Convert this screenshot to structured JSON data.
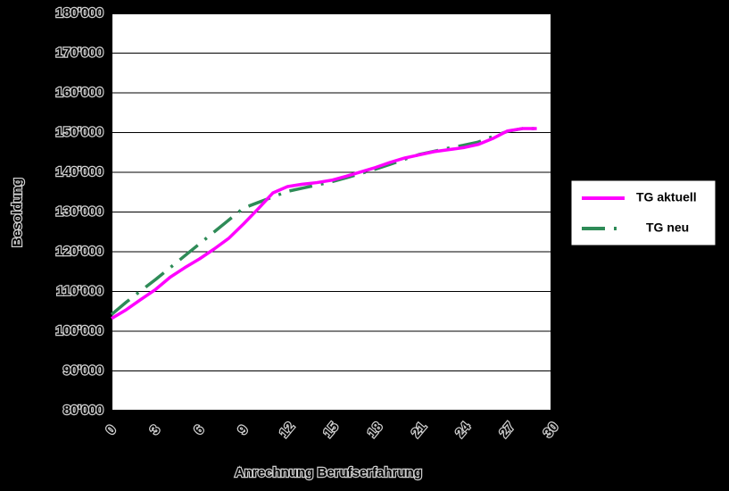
{
  "chart_data": {
    "type": "line",
    "title": "",
    "xlabel": "Anrechnung Berufserfahrung",
    "ylabel": "Besoldung",
    "xlim": [
      0,
      30
    ],
    "ylim": [
      80000,
      180000
    ],
    "x_ticks": [
      0,
      3,
      6,
      9,
      12,
      15,
      18,
      21,
      24,
      27,
      30
    ],
    "y_ticks": [
      80000,
      90000,
      100000,
      110000,
      120000,
      130000,
      140000,
      150000,
      160000,
      170000,
      180000
    ],
    "y_tick_labels": [
      "80'000",
      "90'000",
      "100'000",
      "110'000",
      "120'000",
      "130'000",
      "140'000",
      "150'000",
      "160'000",
      "170'000",
      "180'000"
    ],
    "grid": "horizontal",
    "legend": "right",
    "series": [
      {
        "name": "TG aktuell",
        "color": "#ff00ff",
        "style": "solid",
        "x": [
          0,
          1,
          2,
          3,
          4,
          5,
          6,
          7,
          8,
          9,
          10,
          11,
          12,
          13,
          14,
          15,
          16,
          17,
          18,
          19,
          20,
          21,
          22,
          23,
          24,
          25,
          26,
          27,
          28,
          29
        ],
        "y": [
          103200,
          105400,
          108000,
          110500,
          113600,
          116000,
          118200,
          120700,
          123400,
          127000,
          130800,
          134800,
          136400,
          137000,
          137400,
          138000,
          139000,
          140100,
          141200,
          142500,
          143600,
          144400,
          145200,
          145700,
          146200,
          147000,
          148500,
          150400,
          151000,
          151000
        ]
      },
      {
        "name": "TG neu",
        "color": "#2e8b57",
        "style": "dash-dot",
        "x": [
          0,
          1,
          2,
          3,
          4,
          5,
          6,
          7,
          8,
          9,
          10,
          11,
          12,
          13,
          14,
          15,
          16,
          17,
          18,
          19,
          20,
          21,
          22,
          23,
          24,
          25,
          26,
          27,
          28,
          29
        ],
        "y": [
          104200,
          107300,
          110200,
          113000,
          116000,
          119000,
          122000,
          125000,
          128000,
          131000,
          132400,
          133800,
          135200,
          136000,
          136800,
          137600,
          138600,
          139700,
          140800,
          142000,
          143300,
          144500,
          145300,
          146100,
          146800,
          147600,
          149000,
          150300,
          151000,
          151000
        ]
      }
    ]
  }
}
